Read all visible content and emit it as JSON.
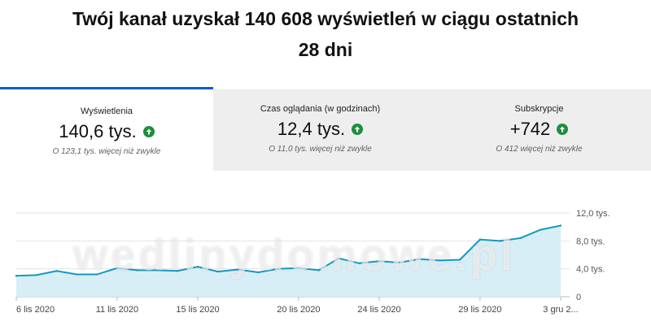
{
  "headline": {
    "line1": "Twój kanał uzyskał 140 608 wyświetleń w ciągu ostatnich",
    "line2": "28 dni"
  },
  "tabs": [
    {
      "label": "Wyświetlenia",
      "value": "140,6 tys.",
      "note": "O 123,1 tys. więcej niż zwykle",
      "active": true
    },
    {
      "label": "Czas oglądania (w godzinach)",
      "value": "12,4 tys.",
      "note": "O 11,0 tys. więcej niż zwykle",
      "active": false
    },
    {
      "label": "Subskrypcje",
      "value": "+742",
      "note": "O 412 więcej niż zwykle",
      "active": false
    }
  ],
  "watermark": "wedlinydomowe.pl",
  "colors": {
    "line": "#1797c0",
    "fill": "#d7eef6",
    "accent": "#065fd4",
    "up": "#1e8e3e"
  },
  "chart_data": {
    "type": "area",
    "x": [
      "6 lis 2020",
      "7 lis",
      "8 lis",
      "9 lis",
      "10 lis",
      "11 lis 2020",
      "12 lis",
      "13 lis",
      "14 lis",
      "15 lis 2020",
      "16 lis",
      "17 lis",
      "18 lis",
      "19 lis",
      "20 lis 2020",
      "21 lis",
      "22 lis",
      "23 lis",
      "24 lis 2020",
      "25 lis",
      "26 lis",
      "27 lis",
      "28 lis",
      "29 lis 2020",
      "30 lis",
      "1 gru",
      "2 gru",
      "3 gru 2020"
    ],
    "values": [
      3000,
      3100,
      3700,
      3200,
      3200,
      4100,
      3800,
      3800,
      3700,
      4300,
      3600,
      3900,
      3500,
      4000,
      4100,
      3800,
      5500,
      4800,
      5100,
      4900,
      5400,
      5200,
      5300,
      8200,
      8000,
      8400,
      9600,
      10200
    ],
    "ylim": [
      0,
      12000
    ],
    "yticks": [
      {
        "v": 0,
        "label": "0"
      },
      {
        "v": 4000,
        "label": "4,0 tys."
      },
      {
        "v": 8000,
        "label": "8,0 tys."
      },
      {
        "v": 12000,
        "label": "12,0 tys."
      }
    ],
    "xticks": [
      {
        "i": 0,
        "label": "6 lis 2020"
      },
      {
        "i": 5,
        "label": "11 lis 2020"
      },
      {
        "i": 9,
        "label": "15 lis 2020"
      },
      {
        "i": 14,
        "label": "20 lis 2020"
      },
      {
        "i": 18,
        "label": "24 lis 2020"
      },
      {
        "i": 23,
        "label": "29 lis 2020"
      },
      {
        "i": 27,
        "label": "3 gru 2..."
      }
    ],
    "grid": true
  }
}
